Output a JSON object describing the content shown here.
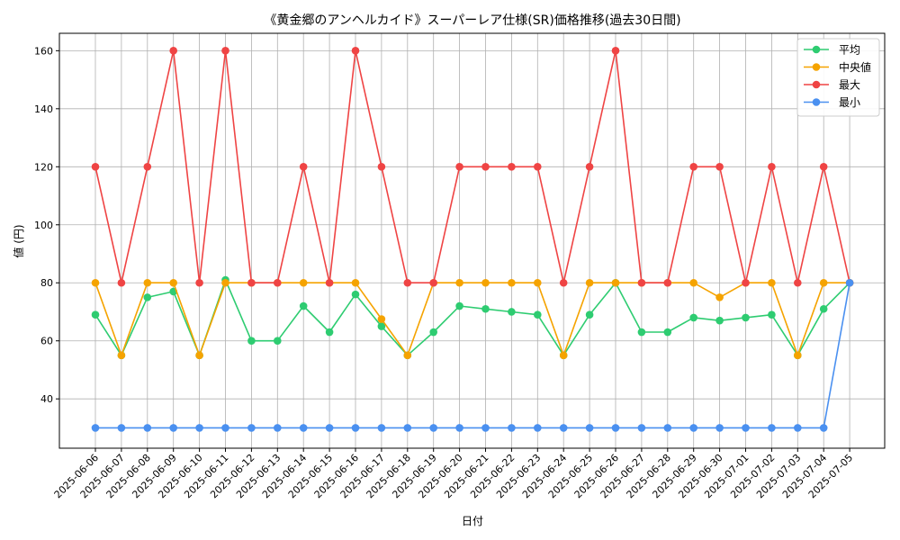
{
  "chart_data": {
    "type": "line",
    "title": "《黄金郷のアンヘルカイド》スーパーレア仕様(SR)価格推移(過去30日間)",
    "xlabel": "日付",
    "ylabel": "値 (円)",
    "ylim": [
      23,
      166
    ],
    "yticks": [
      40,
      60,
      80,
      100,
      120,
      140,
      160
    ],
    "grid": true,
    "legend_position": "top-right",
    "categories": [
      "2025-06-06",
      "2025-06-07",
      "2025-06-08",
      "2025-06-09",
      "2025-06-10",
      "2025-06-11",
      "2025-06-12",
      "2025-06-13",
      "2025-06-14",
      "2025-06-15",
      "2025-06-16",
      "2025-06-17",
      "2025-06-18",
      "2025-06-19",
      "2025-06-20",
      "2025-06-21",
      "2025-06-22",
      "2025-06-23",
      "2025-06-24",
      "2025-06-25",
      "2025-06-26",
      "2025-06-27",
      "2025-06-28",
      "2025-06-29",
      "2025-06-30",
      "2025-07-01",
      "2025-07-02",
      "2025-07-03",
      "2025-07-04",
      "2025-07-05"
    ],
    "series": [
      {
        "name": "平均",
        "color": "#2ecc71",
        "values": [
          69,
          55,
          75,
          77,
          55,
          81,
          60,
          60,
          72,
          63,
          76,
          65,
          55,
          63,
          72,
          71,
          70,
          69,
          55,
          69,
          80,
          63,
          63,
          68,
          67,
          68,
          69,
          55,
          71,
          80
        ]
      },
      {
        "name": "中央値",
        "color": "#f5a300",
        "values": [
          80,
          55,
          80,
          80,
          55,
          80,
          80,
          80,
          80,
          80,
          80,
          67.5,
          55,
          80,
          80,
          80,
          80,
          80,
          55,
          80,
          80,
          80,
          80,
          80,
          75,
          80,
          80,
          55,
          80,
          80
        ]
      },
      {
        "name": "最大",
        "color": "#ef4444",
        "values": [
          120,
          80,
          120,
          160,
          80,
          160,
          80,
          80,
          120,
          80,
          160,
          120,
          80,
          80,
          120,
          120,
          120,
          120,
          80,
          120,
          160,
          80,
          80,
          120,
          120,
          80,
          120,
          80,
          120,
          80
        ]
      },
      {
        "name": "最小",
        "color": "#4a90f0",
        "values": [
          30,
          30,
          30,
          30,
          30,
          30,
          30,
          30,
          30,
          30,
          30,
          30,
          30,
          30,
          30,
          30,
          30,
          30,
          30,
          30,
          30,
          30,
          30,
          30,
          30,
          30,
          30,
          30,
          30,
          80
        ]
      }
    ]
  }
}
